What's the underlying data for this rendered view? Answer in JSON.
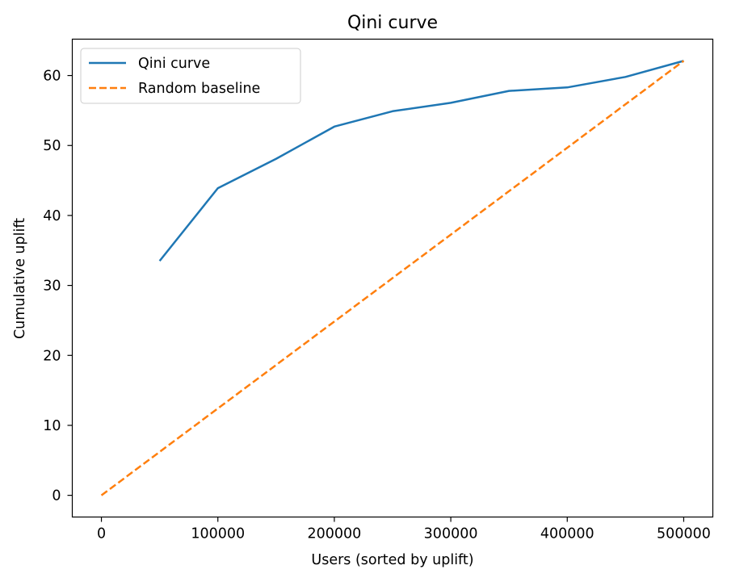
{
  "chart_data": {
    "type": "line",
    "title": "Qini curve",
    "xlabel": "Users (sorted by uplift)",
    "ylabel": "Cumulative uplift",
    "xlim": [
      -25000,
      525000
    ],
    "ylim": [
      -3.1,
      65.2
    ],
    "x_ticks": [
      0,
      100000,
      200000,
      300000,
      400000,
      500000
    ],
    "y_ticks": [
      0,
      10,
      20,
      30,
      40,
      50,
      60
    ],
    "grid": false,
    "legend_position": "top-left",
    "series": [
      {
        "name": "Qini curve",
        "color": "#1f77b4",
        "style": "solid",
        "x": [
          50000,
          100000,
          150000,
          200000,
          250000,
          300000,
          350000,
          400000,
          450000,
          500000
        ],
        "y": [
          33.5,
          43.9,
          48.1,
          52.7,
          54.9,
          56.1,
          57.8,
          58.3,
          59.8,
          62.1
        ]
      },
      {
        "name": "Random baseline",
        "color": "#ff7f0e",
        "style": "dashed",
        "x": [
          0,
          500000
        ],
        "y": [
          0,
          62.1
        ]
      }
    ]
  }
}
